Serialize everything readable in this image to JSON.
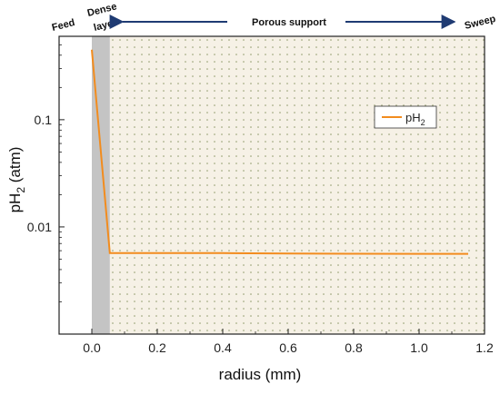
{
  "chart_data": {
    "type": "line",
    "xlabel": "radius (mm)",
    "ylabel_main": "pH",
    "ylabel_sub": "2",
    "ylabel_unit": " (atm)",
    "xlim": [
      -0.1,
      1.2
    ],
    "ylim": [
      0.001,
      0.6
    ],
    "yscale": "log",
    "x_ticks": [
      0.0,
      0.2,
      0.4,
      0.6,
      0.8,
      1.0,
      1.2
    ],
    "x_tick_labels": [
      "0.0",
      "0.2",
      "0.4",
      "0.6",
      "0.8",
      "1.0",
      "1.2"
    ],
    "y_ticks": [
      0.01,
      0.1
    ],
    "y_tick_labels": [
      "0.01",
      "0.1"
    ],
    "grid": false,
    "legend_position": "top-right",
    "series": [
      {
        "name_main": "pH",
        "name_sub": "2",
        "color": "#F28C1E",
        "x": [
          0.0,
          0.055,
          0.2,
          0.4,
          0.6,
          0.8,
          1.0,
          1.15
        ],
        "y": [
          0.45,
          0.0057,
          0.0057,
          0.0057,
          0.00565,
          0.00562,
          0.0056,
          0.0056
        ]
      }
    ],
    "regions": {
      "dense_layer": {
        "x_range": [
          0.0,
          0.055
        ],
        "color": "#c4c4c4"
      },
      "porous_support": {
        "x_range": [
          0.055,
          1.2
        ],
        "color": "#f6f1e6",
        "dot_color": "#8f9a6a"
      }
    },
    "annotations": {
      "feed": "Feed",
      "dense_line1": "Dense",
      "dense_line2": "layer",
      "porous": "Porous support",
      "sweep": "Sweep",
      "arrow_color": "#1f3b73"
    }
  }
}
